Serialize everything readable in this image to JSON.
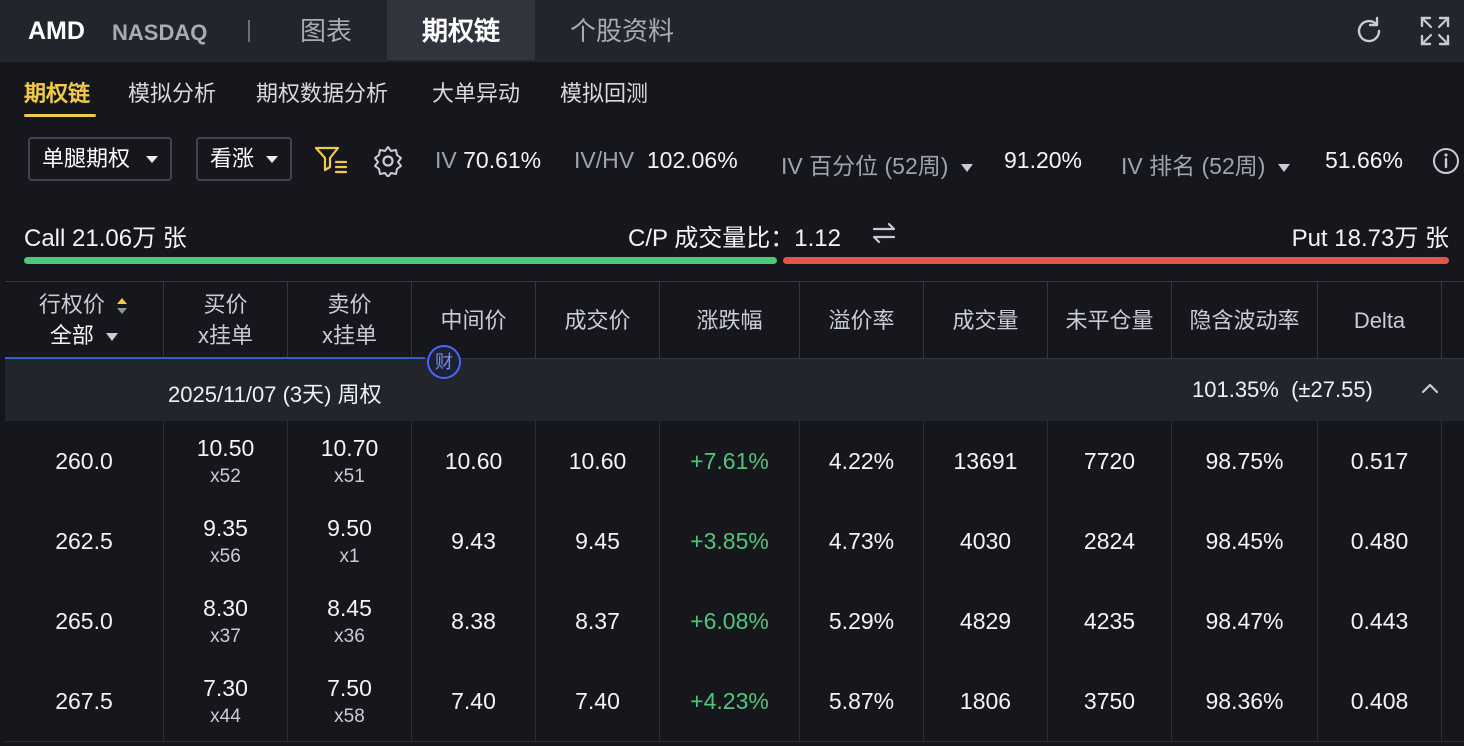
{
  "header": {
    "ticker": "AMD",
    "exchange": "NASDAQ",
    "tabs": [
      "图表",
      "期权链",
      "个股资料"
    ]
  },
  "subtabs": [
    "期权链",
    "模拟分析",
    "期权数据分析",
    "大单异动",
    "模拟回测"
  ],
  "filters": {
    "strategy": "单腿期权",
    "direction": "看涨",
    "iv_label": "IV",
    "iv_value": "70.61%",
    "ivhv_label": "IV/HV",
    "ivhv_value": "102.06%",
    "ivpct_label": "IV 百分位 (52周)",
    "ivpct_value": "91.20%",
    "ivrank_label": "IV 排名 (52周)",
    "ivrank_value": "51.66%"
  },
  "volume": {
    "call": "Call 21.06万 张",
    "ratio_label": "C/P 成交量比：",
    "ratio_value": "1.12",
    "put": "Put 18.73万 张",
    "call_share": 0.53
  },
  "table": {
    "headers": {
      "strike": "行权价",
      "strike_filter": "全部",
      "bid": [
        "买价",
        "x挂单"
      ],
      "ask": [
        "卖价",
        "x挂单"
      ],
      "mid": "中间价",
      "last": "成交价",
      "change": "涨跌幅",
      "premium": "溢价率",
      "volume": "成交量",
      "oi": "未平仓量",
      "iv": "隐含波动率",
      "delta": "Delta"
    },
    "earnings_badge": "财",
    "group": {
      "expiry": "2025/11/07 (3天) 周权",
      "iv": "101.35%",
      "move": "(±27.55)"
    },
    "rows": [
      {
        "strike": "260.0",
        "bid": "10.50",
        "bid_size": "x52",
        "ask": "10.70",
        "ask_size": "x51",
        "mid": "10.60",
        "last": "10.60",
        "change": "+7.61%",
        "premium": "4.22%",
        "volume": "13691",
        "oi": "7720",
        "iv": "98.75%",
        "delta": "0.517"
      },
      {
        "strike": "262.5",
        "bid": "9.35",
        "bid_size": "x56",
        "ask": "9.50",
        "ask_size": "x1",
        "mid": "9.43",
        "last": "9.45",
        "change": "+3.85%",
        "premium": "4.73%",
        "volume": "4030",
        "oi": "2824",
        "iv": "98.45%",
        "delta": "0.480"
      },
      {
        "strike": "265.0",
        "bid": "8.30",
        "bid_size": "x37",
        "ask": "8.45",
        "ask_size": "x36",
        "mid": "8.38",
        "last": "8.37",
        "change": "+6.08%",
        "premium": "5.29%",
        "volume": "4829",
        "oi": "4235",
        "iv": "98.47%",
        "delta": "0.443"
      },
      {
        "strike": "267.5",
        "bid": "7.30",
        "bid_size": "x44",
        "ask": "7.50",
        "ask_size": "x58",
        "mid": "7.40",
        "last": "7.40",
        "change": "+4.23%",
        "premium": "5.87%",
        "volume": "1806",
        "oi": "3750",
        "iv": "98.36%",
        "delta": "0.408"
      }
    ]
  },
  "colors": {
    "accent": "#f2c94c",
    "call": "#4fc67a",
    "put": "#e0564d",
    "badge": "#4667ff"
  }
}
